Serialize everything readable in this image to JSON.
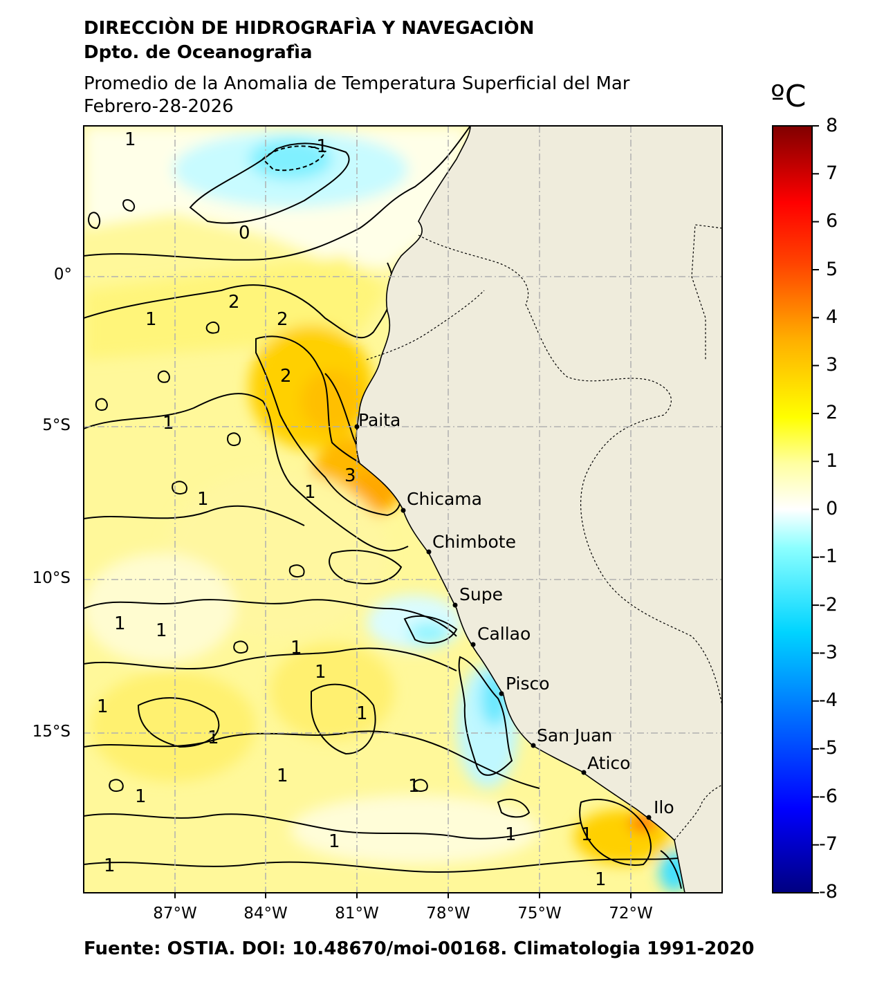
{
  "header": {
    "org": "DIRECCIÒN DE HIDROGRAFÌA Y NAVEGACIÒN",
    "dept": "Dpto. de Oceanografìa",
    "title": "Promedio de la Anomalia de Temperatura Superficial del Mar",
    "date": "Febrero-28-2026"
  },
  "footer": "Fuente: OSTIA. DOI: 10.48670/moi-00168. Climatologia 1991-2020",
  "map": {
    "lon_range": [
      -91,
      -70
    ],
    "lat_range": [
      -20,
      5
    ],
    "lon_ticks": [
      "87°W",
      "84°W",
      "81°W",
      "78°W",
      "75°W",
      "72°W"
    ],
    "lat_ticks": [
      "0°",
      "5°S",
      "10°S",
      "15°S"
    ],
    "land_color": "#efecdc",
    "gridlines": true,
    "cities": [
      {
        "name": "Paita"
      },
      {
        "name": "Chicama"
      },
      {
        "name": "Chimbote"
      },
      {
        "name": "Supe"
      },
      {
        "name": "Callao"
      },
      {
        "name": "Pisco"
      },
      {
        "name": "San Juan"
      },
      {
        "name": "Atico"
      },
      {
        "name": "Ilo"
      }
    ]
  },
  "colorbar": {
    "unit": "ºC",
    "ticks": [
      "8",
      "7",
      "6",
      "5",
      "4",
      "3",
      "2",
      "1",
      "0",
      "-1",
      "-2",
      "-3",
      "-4",
      "-5",
      "-6",
      "-7",
      "-8"
    ],
    "range": [
      -8,
      8
    ],
    "colormap": "jet"
  },
  "legend_contours": [
    "-1",
    "0",
    "1",
    "2",
    "3"
  ]
}
